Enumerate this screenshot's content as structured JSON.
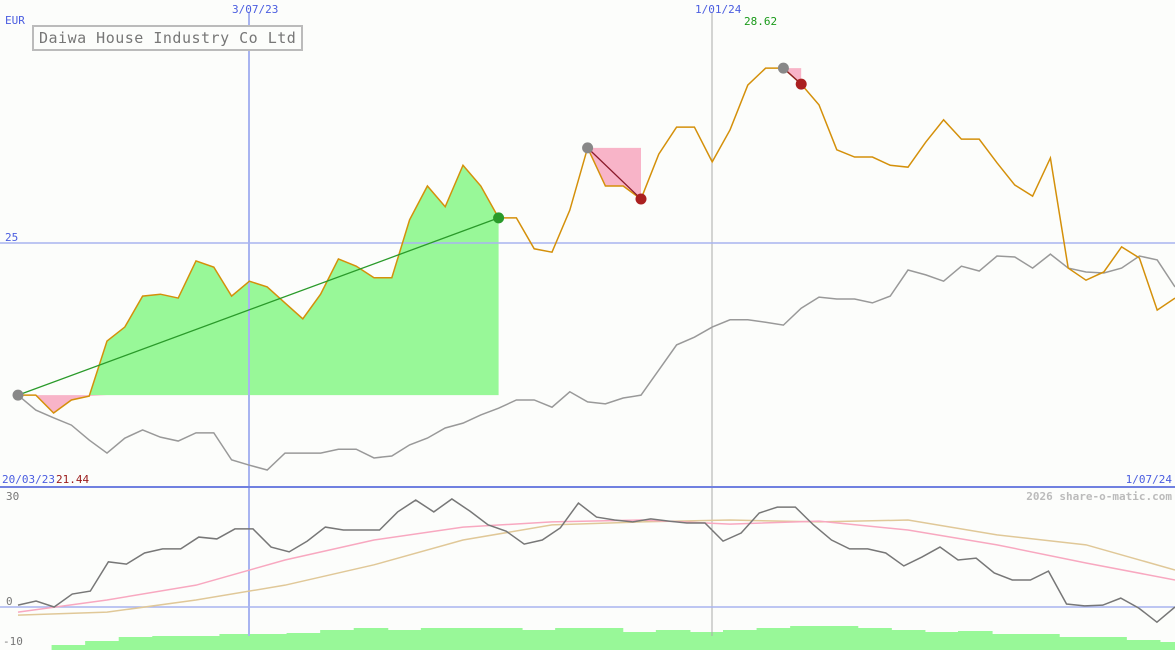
{
  "chart_data": {
    "type": "line",
    "title": "Daiwa House Industry Co Ltd",
    "currency": "EUR",
    "x_start_label": "20/03/23",
    "x_end_label": "1/07/24",
    "x_tick_labels": [
      "3/07/23",
      "1/01/24"
    ],
    "y_tick_labels": [
      "25"
    ],
    "high_label": "28.62",
    "low_label": "21.44",
    "watermark": "2026 share-o-matic.com",
    "grid": true,
    "colors": {
      "price": "#d4900a",
      "relative": "#999999",
      "gain_fill": "#98f898",
      "loss_fill": "#f8b4c8",
      "buy_line": "#2a9a2a",
      "sell_line": "#8a1a2a",
      "axis": "#4a5de0"
    },
    "price": [
      21.85,
      21.85,
      21.48,
      21.75,
      21.83,
      22.97,
      23.26,
      23.9,
      23.94,
      23.86,
      24.63,
      24.5,
      23.9,
      24.21,
      24.09,
      23.76,
      23.43,
      23.94,
      24.67,
      24.52,
      24.28,
      24.28,
      25.48,
      26.18,
      25.75,
      26.61,
      26.18,
      25.52,
      25.52,
      24.88,
      24.81,
      25.68,
      26.97,
      26.18,
      26.18,
      25.91,
      26.84,
      27.4,
      27.4,
      26.68,
      27.34,
      28.27,
      28.62,
      28.62,
      28.29,
      27.86,
      26.93,
      26.78,
      26.78,
      26.61,
      26.57,
      27.09,
      27.55,
      27.15,
      27.15,
      26.66,
      26.2,
      25.97,
      26.76,
      24.48,
      24.23,
      24.4,
      24.92,
      24.69,
      23.61,
      23.86
    ],
    "relative": [
      21.85,
      21.54,
      21.38,
      21.23,
      20.92,
      20.65,
      20.96,
      21.13,
      20.98,
      20.9,
      21.07,
      21.07,
      20.51,
      20.4,
      20.3,
      20.65,
      20.65,
      20.65,
      20.73,
      20.73,
      20.55,
      20.59,
      20.82,
      20.96,
      21.17,
      21.27,
      21.44,
      21.58,
      21.75,
      21.75,
      21.6,
      21.92,
      21.71,
      21.67,
      21.79,
      21.85,
      22.37,
      22.89,
      23.05,
      23.26,
      23.41,
      23.41,
      23.36,
      23.3,
      23.65,
      23.88,
      23.84,
      23.84,
      23.76,
      23.9,
      24.44,
      24.34,
      24.21,
      24.52,
      24.42,
      24.73,
      24.71,
      24.48,
      24.77,
      24.48,
      24.4,
      24.38,
      24.48,
      24.73,
      24.65,
      24.09
    ],
    "trades": [
      {
        "entry_index": 0,
        "exit_index": 27,
        "result": "gain"
      },
      {
        "entry_index": 32,
        "exit_index": 35,
        "result": "loss"
      },
      {
        "entry_index": 43,
        "exit_index": 44,
        "result": "loss"
      }
    ],
    "oscillator": {
      "y_tick_labels": [
        "30",
        "0",
        "-10"
      ],
      "ylim": [
        -10,
        30
      ],
      "momentum": [
        0.5,
        1.6,
        0,
        3.5,
        4.3,
        12.2,
        11.6,
        14.6,
        15.7,
        15.7,
        18.9,
        18.4,
        21.1,
        21.1,
        16.2,
        14.9,
        17.8,
        21.6,
        20.8,
        20.8,
        20.8,
        25.7,
        28.9,
        25.7,
        29.2,
        25.9,
        22.2,
        20.5,
        17.0,
        18.1,
        21.4,
        28.1,
        24.3,
        23.5,
        23.0,
        23.8,
        23.2,
        22.7,
        22.7,
        17.8,
        20.0,
        25.4,
        27.0,
        27.0,
        22.2,
        18.1,
        15.7,
        15.7,
        14.6,
        11.1,
        13.5,
        16.2,
        12.7,
        13.2,
        9.2,
        7.3,
        7.3,
        9.7,
        0.8,
        0.3,
        0.5,
        2.4,
        -0.3,
        -4.1,
        0
      ],
      "avg_fast_every5": [
        -1.4,
        1.9,
        5.9,
        12.7,
        18.1,
        21.6,
        23.0,
        23.5,
        22.4,
        23.2,
        20.8,
        16.8,
        11.9,
        7.3
      ],
      "avg_slow_every5": [
        -2.2,
        -1.4,
        1.9,
        5.9,
        11.4,
        18.1,
        22.2,
        23.0,
        23.5,
        23.0,
        23.5,
        19.5,
        16.8,
        10.0
      ],
      "colors": {
        "momentum": "#777777",
        "avg_fast": "#f8a8c0",
        "avg_slow": "#e0c898",
        "volume": "#98f898"
      }
    },
    "volume": [
      3,
      5,
      9,
      13,
      14,
      14,
      16,
      16,
      17,
      20,
      22,
      20,
      22,
      22,
      22,
      20,
      22,
      22,
      18,
      20,
      18,
      20,
      22,
      24,
      24,
      22,
      20,
      18,
      19,
      16,
      16,
      13,
      13,
      10,
      8
    ]
  }
}
